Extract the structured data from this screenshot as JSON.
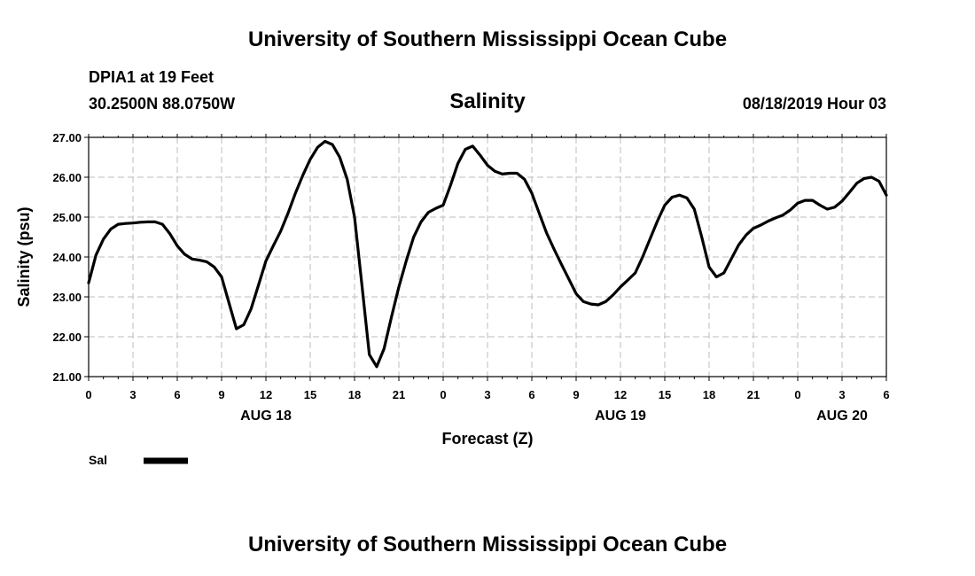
{
  "page": {
    "top_title": "University of Southern Mississippi Ocean Cube",
    "bottom_title": "University of Southern Mississippi Ocean Cube",
    "station": "DPIA1 at 19 Feet",
    "location": "30.2500N 88.0750W",
    "chart_title": "Salinity",
    "datetime": "08/18/2019 Hour 03"
  },
  "colors": {
    "line": "#000000",
    "grid": "#bdbdbd",
    "background": "#ffffff"
  },
  "chart_data": {
    "type": "line",
    "title": "Salinity",
    "xlabel": "Forecast (Z)",
    "ylabel": "Salinity (psu)",
    "ylim": [
      21.0,
      27.0
    ],
    "yticks": [
      "21.00",
      "22.00",
      "23.00",
      "24.00",
      "25.00",
      "26.00",
      "27.00"
    ],
    "x_range_hours": [
      0,
      54
    ],
    "xticks": [
      {
        "hour": 0,
        "label": "0"
      },
      {
        "hour": 3,
        "label": "3"
      },
      {
        "hour": 6,
        "label": "6"
      },
      {
        "hour": 9,
        "label": "9"
      },
      {
        "hour": 12,
        "label": "12"
      },
      {
        "hour": 15,
        "label": "15"
      },
      {
        "hour": 18,
        "label": "18"
      },
      {
        "hour": 21,
        "label": "21"
      },
      {
        "hour": 24,
        "label": "0"
      },
      {
        "hour": 27,
        "label": "3"
      },
      {
        "hour": 30,
        "label": "6"
      },
      {
        "hour": 33,
        "label": "9"
      },
      {
        "hour": 36,
        "label": "12"
      },
      {
        "hour": 39,
        "label": "15"
      },
      {
        "hour": 42,
        "label": "18"
      },
      {
        "hour": 45,
        "label": "21"
      },
      {
        "hour": 48,
        "label": "0"
      },
      {
        "hour": 51,
        "label": "3"
      },
      {
        "hour": 54,
        "label": "6"
      }
    ],
    "date_labels": [
      {
        "hour": 12,
        "label": "AUG 18"
      },
      {
        "hour": 36,
        "label": "AUG 19"
      },
      {
        "hour": 51,
        "label": "AUG 20"
      }
    ],
    "legend": "Sal",
    "series": [
      {
        "name": "Sal",
        "x": [
          0,
          0.5,
          1,
          1.5,
          2,
          2.5,
          3,
          3.5,
          4,
          4.5,
          5,
          5.5,
          6,
          6.5,
          7,
          7.5,
          8,
          8.5,
          9,
          9.5,
          10,
          10.5,
          11,
          11.5,
          12,
          12.5,
          13,
          13.5,
          14,
          14.5,
          15,
          15.5,
          16,
          16.5,
          17,
          17.5,
          18,
          18.5,
          19,
          19.5,
          20,
          20.5,
          21,
          21.5,
          22,
          22.5,
          23,
          23.5,
          24,
          24.5,
          25,
          25.5,
          26,
          26.5,
          27,
          27.5,
          28,
          28.5,
          29,
          29.5,
          30,
          30.5,
          31,
          31.5,
          32,
          32.5,
          33,
          33.5,
          34,
          34.5,
          35,
          35.5,
          36,
          36.5,
          37,
          37.5,
          38,
          38.5,
          39,
          39.5,
          40,
          40.5,
          41,
          41.5,
          42,
          42.5,
          43,
          43.5,
          44,
          44.5,
          45,
          45.5,
          46,
          46.5,
          47,
          47.5,
          48,
          48.5,
          49,
          49.5,
          50,
          50.5,
          51,
          51.5,
          52,
          52.5,
          53,
          53.5,
          54
        ],
        "values": [
          23.35,
          24.05,
          24.45,
          24.7,
          24.82,
          24.84,
          24.85,
          24.87,
          24.88,
          24.88,
          24.82,
          24.58,
          24.28,
          24.07,
          23.95,
          23.92,
          23.88,
          23.75,
          23.5,
          22.85,
          22.2,
          22.3,
          22.7,
          23.3,
          23.9,
          24.28,
          24.65,
          25.1,
          25.6,
          26.05,
          26.45,
          26.75,
          26.9,
          26.82,
          26.5,
          25.95,
          25.0,
          23.3,
          21.55,
          21.25,
          21.7,
          22.5,
          23.25,
          23.9,
          24.5,
          24.88,
          25.12,
          25.22,
          25.3,
          25.8,
          26.35,
          26.7,
          26.78,
          26.55,
          26.3,
          26.15,
          26.08,
          26.1,
          26.1,
          25.95,
          25.6,
          25.1,
          24.6,
          24.2,
          23.82,
          23.45,
          23.08,
          22.88,
          22.82,
          22.8,
          22.88,
          23.05,
          23.25,
          23.42,
          23.6,
          24.0,
          24.45,
          24.9,
          25.3,
          25.5,
          25.55,
          25.48,
          25.2,
          24.5,
          23.75,
          23.5,
          23.6,
          23.95,
          24.3,
          24.55,
          24.72,
          24.8,
          24.9,
          24.98,
          25.05,
          25.18,
          25.35,
          25.42,
          25.42,
          25.3,
          25.2,
          25.25,
          25.4,
          25.62,
          25.85,
          25.97,
          26.0,
          25.9,
          25.55
        ]
      }
    ]
  }
}
